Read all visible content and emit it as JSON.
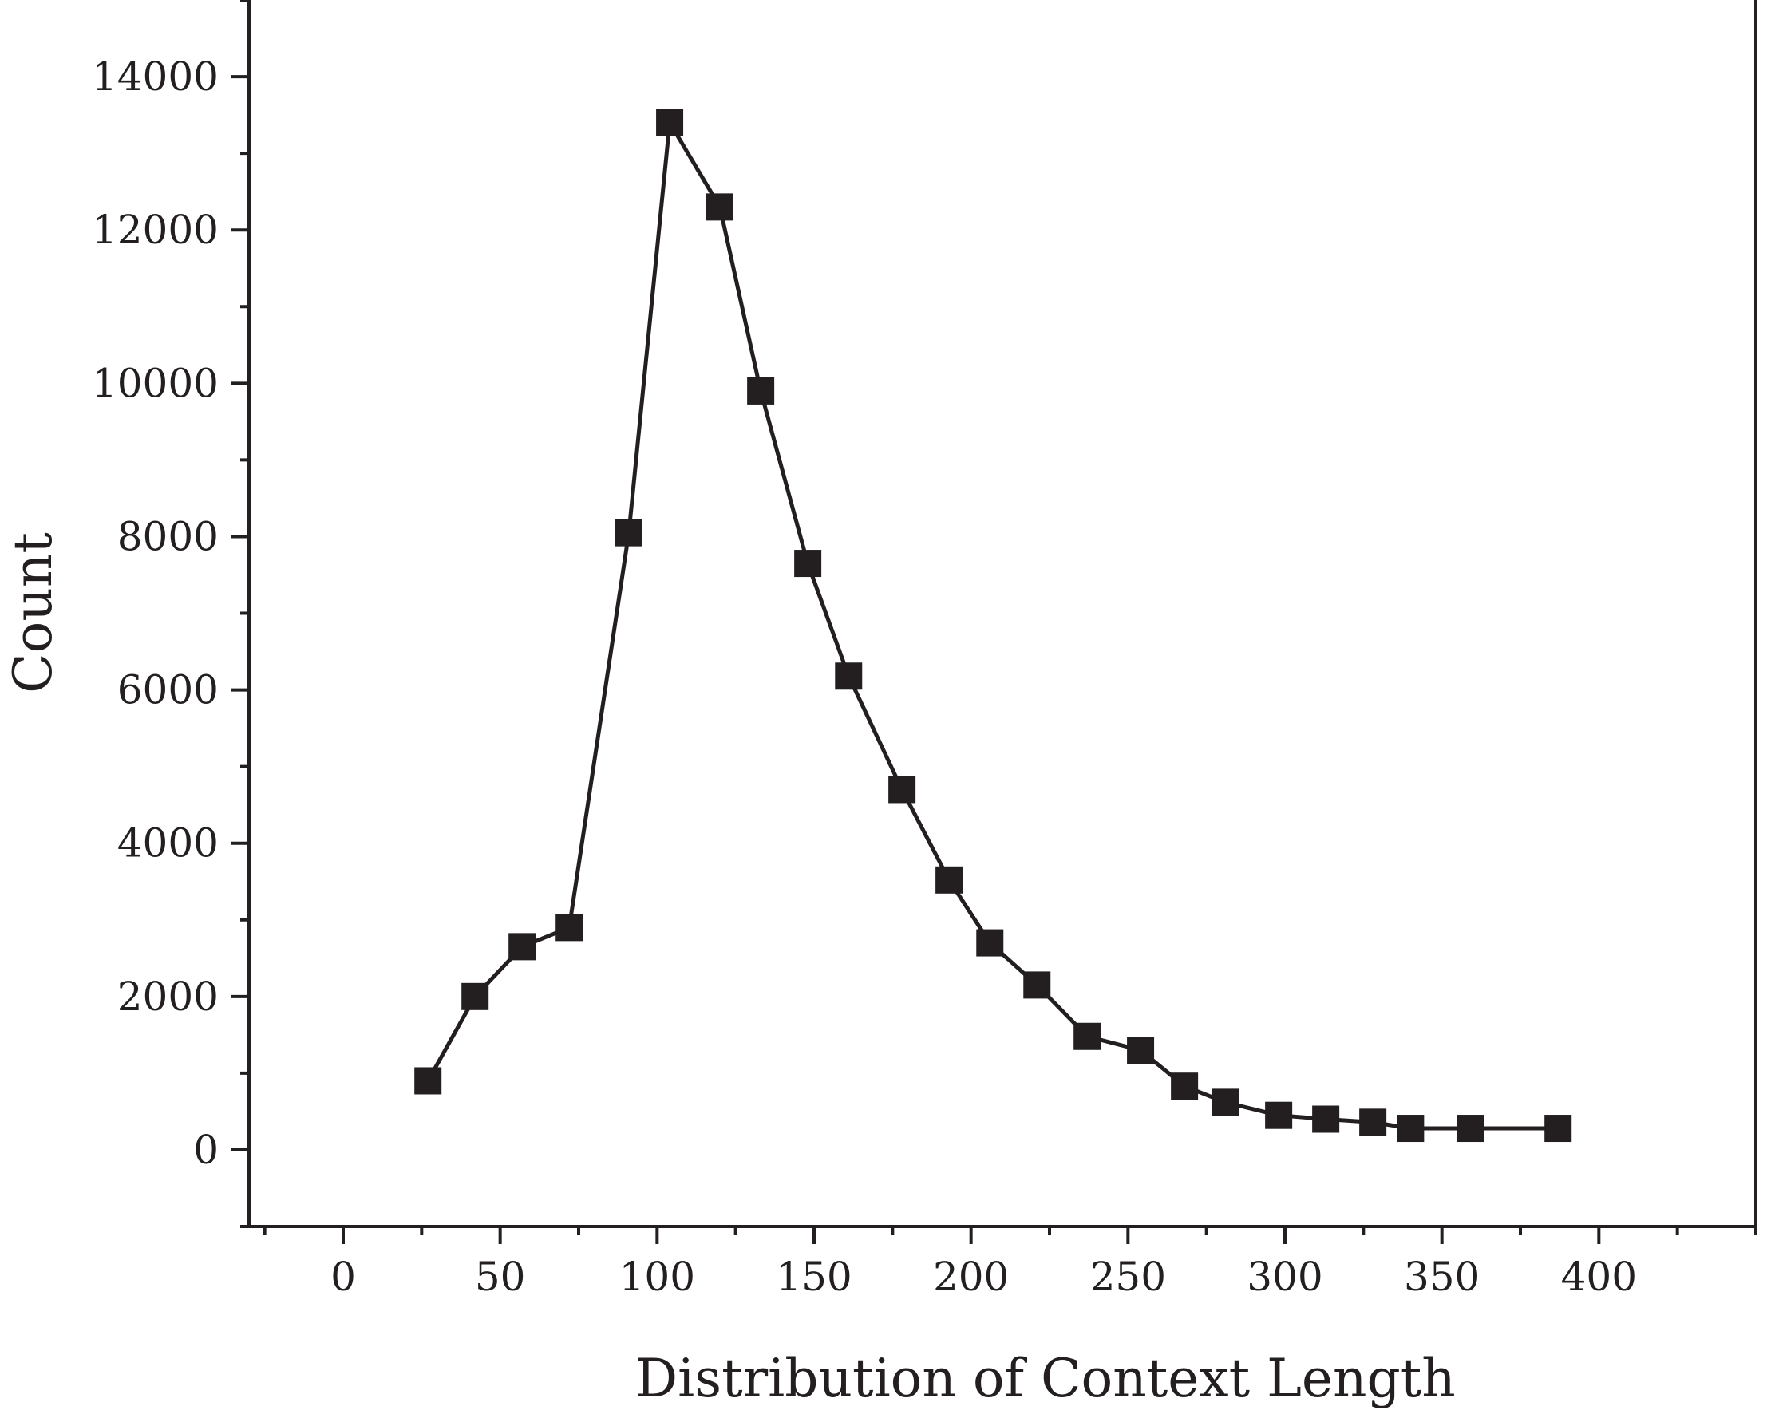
{
  "chart_data": {
    "type": "line",
    "title": "",
    "xlabel": "Distribution of Context Length",
    "ylabel": "Count",
    "xlim": [
      -30,
      450
    ],
    "ylim": [
      -1000,
      15000
    ],
    "xticks": [
      0,
      50,
      100,
      150,
      200,
      250,
      300,
      350,
      400
    ],
    "yticks": [
      0,
      2000,
      4000,
      6000,
      8000,
      10000,
      12000,
      14000
    ],
    "xtick_labels": [
      "0",
      "50",
      "100",
      "150",
      "200",
      "250",
      "300",
      "350",
      "400"
    ],
    "ytick_labels": [
      "0",
      "2000",
      "4000",
      "6000",
      "8000",
      "10000",
      "12000",
      "14000"
    ],
    "grid": false,
    "legend": "none",
    "marker": "square",
    "line_color": "#231f20",
    "series": [
      {
        "x": [
          27,
          42,
          57,
          72,
          91,
          104,
          120,
          133,
          148,
          161,
          178,
          193,
          206,
          221,
          237,
          254,
          268,
          281,
          298,
          313,
          328,
          340,
          359,
          387
        ],
        "y": [
          900,
          2000,
          2650,
          2900,
          8050,
          13400,
          12300,
          9900,
          7650,
          6180,
          4700,
          3520,
          2700,
          2150,
          1480,
          1300,
          830,
          620,
          450,
          400,
          360,
          280,
          280,
          280
        ]
      }
    ]
  }
}
